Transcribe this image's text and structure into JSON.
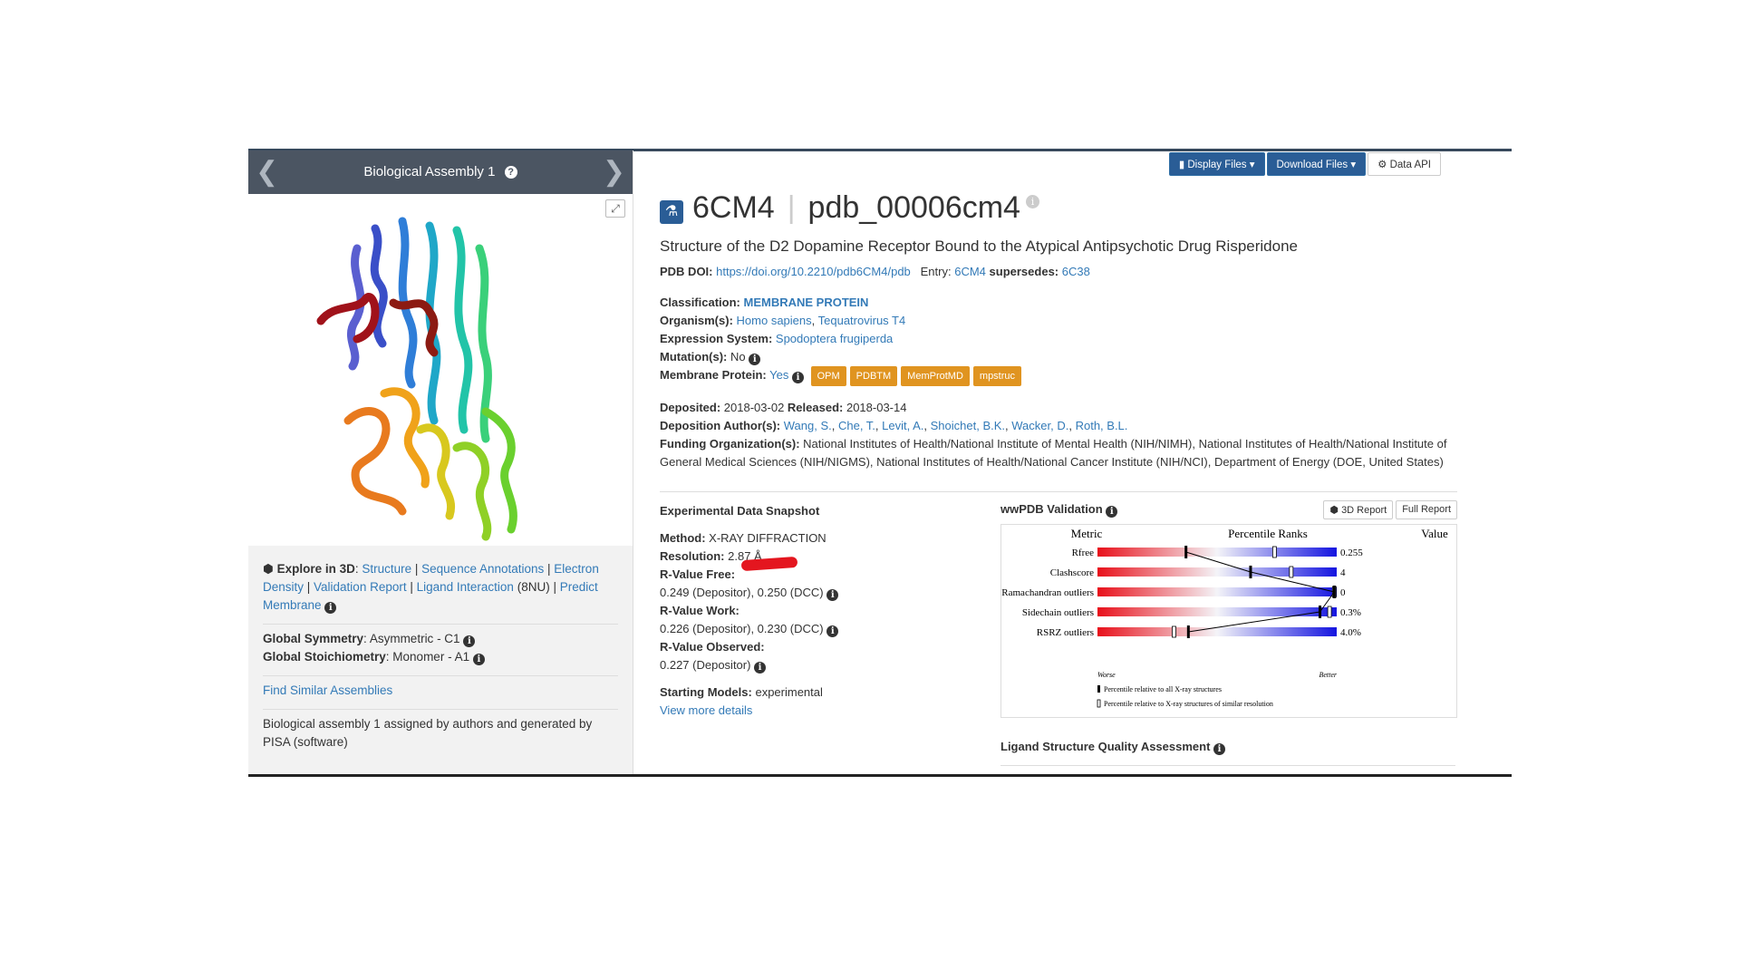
{
  "left_panel": {
    "title": "Biological Assembly 1",
    "explore_label": "Explore in 3D",
    "explore_links": [
      "Structure",
      "Sequence Annotations",
      "Electron Density",
      "Validation Report",
      "Ligand Interaction"
    ],
    "ligand_code": "(8NU)",
    "predict_membrane": "Predict Membrane",
    "global_symmetry_label": "Global Symmetry",
    "global_symmetry": "Asymmetric - C1",
    "global_stoichiometry_label": "Global Stoichiometry",
    "global_stoichiometry": "Monomer - A1",
    "find_similar": "Find Similar Assemblies",
    "assembly_note": "Biological assembly 1 assigned by authors and generated by PISA (software)"
  },
  "toolbar": {
    "display_files": "Display Files ▾",
    "download_files": "Download Files ▾",
    "data_api": "Data API"
  },
  "entry": {
    "id": "6CM4",
    "pdb_id": "pdb_00006cm4",
    "title": "Structure of the D2 Dopamine Receptor Bound to the Atypical Antipsychotic Drug Risperidone",
    "doi_label": "PDB DOI:",
    "doi": "https://doi.org/10.2210/pdb6CM4/pdb",
    "entry_label": "Entry:",
    "entry_link": "6CM4",
    "supersedes_label": "supersedes:",
    "supersedes": "6C38",
    "classification_label": "Classification:",
    "classification": "MEMBRANE PROTEIN",
    "organisms_label": "Organism(s):",
    "organism1": "Homo sapiens",
    "organism2": "Tequatrovirus T4",
    "expression_label": "Expression System:",
    "expression": "Spodoptera frugiperda",
    "mutation_label": "Mutation(s):",
    "mutation": "No",
    "membrane_label": "Membrane Protein:",
    "membrane": "Yes",
    "badges": [
      "OPM",
      "PDBTM",
      "MemProtMD",
      "mpstruc"
    ],
    "deposited_label": "Deposited:",
    "deposited": "2018-03-02",
    "released_label": "Released:",
    "released": "2018-03-14",
    "authors_label": "Deposition Author(s):",
    "authors": [
      "Wang, S.",
      "Che, T.",
      "Levit, A.",
      "Shoichet, B.K.",
      "Wacker, D.",
      "Roth, B.L."
    ],
    "funding_label": "Funding Organization(s):",
    "funding": "National Institutes of Health/National Institute of Mental Health (NIH/NIMH), National Institutes of Health/National Institute of General Medical Sciences (NIH/NIGMS), National Institutes of Health/National Cancer Institute (NIH/NCI), Department of Energy (DOE, United States)"
  },
  "snapshot": {
    "heading": "Experimental Data Snapshot",
    "method_label": "Method:",
    "method": "X-RAY DIFFRACTION",
    "resolution_label": "Resolution:",
    "resolution": "2.87 Å",
    "rfree_label": "R-Value Free:",
    "rfree": "0.249 (Depositor), 0.250 (DCC)",
    "rwork_label": "R-Value Work:",
    "rwork": "0.226 (Depositor), 0.230 (DCC)",
    "robs_label": "R-Value Observed:",
    "robs": "0.227 (Depositor)",
    "starting_label": "Starting Models:",
    "starting": "experimental",
    "more": "View more details"
  },
  "validation": {
    "heading": "wwPDB Validation",
    "btn_3d": "3D Report",
    "btn_full": "Full Report",
    "col_metric": "Metric",
    "col_pct": "Percentile Ranks",
    "col_value": "Value",
    "worse": "Worse",
    "better": "Better",
    "legend1": "Percentile relative to all X-ray structures",
    "legend2": "Percentile relative to X-ray structures of similar resolution",
    "metrics": [
      {
        "name": "Rfree",
        "value": "0.255",
        "all": 0.37,
        "similar": 0.74
      },
      {
        "name": "Clashscore",
        "value": "4",
        "all": 0.64,
        "similar": 0.81
      },
      {
        "name": "Ramachandran outliers",
        "value": "0",
        "all": 0.99,
        "similar": 0.99
      },
      {
        "name": "Sidechain outliers",
        "value": "0.3%",
        "all": 0.93,
        "similar": 0.97
      },
      {
        "name": "RSRZ outliers",
        "value": "4.0%",
        "all": 0.38,
        "similar": 0.32
      }
    ]
  },
  "ligand_heading": "Ligand Structure Quality Assessment",
  "colors": {
    "accent": "#2a5d96",
    "badge": "#e09420",
    "link": "#337ab7"
  },
  "icons": [
    "flask-icon",
    "info-icon",
    "cube-icon",
    "gear-icon",
    "file-icon",
    "expand-icon",
    "arrow-left-icon",
    "arrow-right-icon"
  ]
}
